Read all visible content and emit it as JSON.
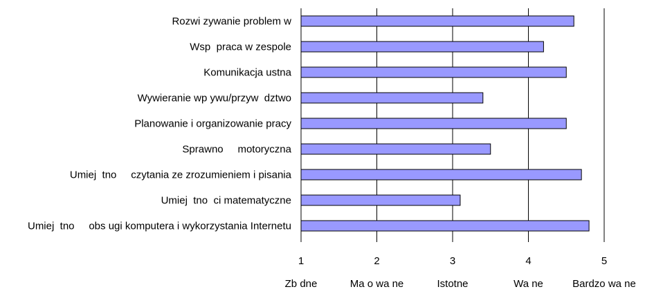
{
  "chart_data": {
    "type": "bar",
    "orientation": "horizontal",
    "title": "",
    "xlabel": "",
    "ylabel": "",
    "categories": [
      "Rozwi zywanie problem w",
      "Wsp  praca w zespole",
      "Komunikacja ustna",
      "Wywieranie wp ywu/przyw  dztwo",
      "Planowanie i organizowanie pracy",
      "Sprawno     motoryczna",
      "Umiej  tno     czytania ze zrozumieniem i pisania",
      "Umiej  tno  ci matematyczne",
      "Umiej  tno     obs ugi komputera i wykorzystania Internetu"
    ],
    "values": [
      4.6,
      4.2,
      4.5,
      3.4,
      4.5,
      3.5,
      4.7,
      3.1,
      4.8
    ],
    "xlim": [
      1,
      5
    ],
    "ticks": [
      "1",
      "2",
      "3",
      "4",
      "5"
    ],
    "scale_labels": [
      "Zb  dne",
      "Ma o wa  ne",
      "Istotne",
      "Wa  ne",
      "Bardzo wa  ne"
    ],
    "grid": true,
    "legend": "none",
    "bar_color": "#9999ff"
  }
}
